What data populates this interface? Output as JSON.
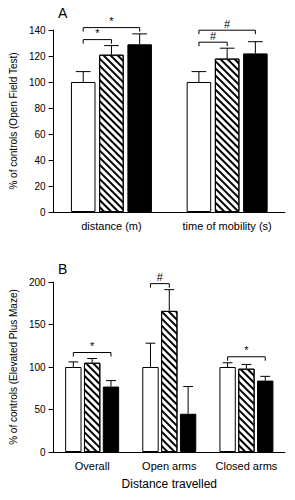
{
  "chart_data": [
    {
      "type": "bar",
      "panel_label": "A",
      "ylabel": "% of controls (Open Field Test)",
      "categories": [
        "distance (m)",
        "time of mobility (s)"
      ],
      "series": [
        {
          "color": "#ffffff",
          "values": [
            100,
            100
          ],
          "errors": [
            8,
            8
          ]
        },
        {
          "color": "#ffffff",
          "values": [
            121,
            118
          ],
          "errors": [
            7,
            8
          ]
        },
        {
          "color": "#000000",
          "values": [
            129,
            122
          ],
          "errors": [
            8,
            9
          ]
        }
      ],
      "ylim": [
        0,
        140
      ],
      "yticks": [
        0,
        20,
        40,
        60,
        80,
        100,
        120,
        140
      ],
      "grid": false,
      "significance": [
        {
          "label": "*",
          "category": 0,
          "from": 0,
          "to": 1
        },
        {
          "label": "*",
          "category": 0,
          "from": 0,
          "to": 2
        },
        {
          "label": "#",
          "category": 1,
          "from": 0,
          "to": 1
        },
        {
          "label": "#",
          "category": 1,
          "from": 0,
          "to": 2
        }
      ]
    },
    {
      "type": "bar",
      "panel_label": "B",
      "ylabel": "% of controls (Elevated Plus Maze)",
      "xlabel": "Distance travelled",
      "categories": [
        "Overall",
        "Open arms",
        "Closed arms"
      ],
      "series": [
        {
          "color": "#ffffff",
          "values": [
            100,
            100,
            100
          ],
          "errors": [
            6,
            28,
            5
          ]
        },
        {
          "color": "#ffffff",
          "values": [
            105,
            166,
            98
          ],
          "errors": [
            5,
            25,
            5
          ]
        },
        {
          "color": "#000000",
          "values": [
            77,
            45,
            84
          ],
          "errors": [
            7,
            32,
            5
          ]
        }
      ],
      "ylim": [
        0,
        200
      ],
      "yticks": [
        0,
        50,
        100,
        150,
        200
      ],
      "grid": false,
      "significance": [
        {
          "label": "*",
          "category": 0,
          "from": 0,
          "to": 2
        },
        {
          "label": "#",
          "category": 1,
          "from": 0,
          "to": 1
        },
        {
          "label": "*",
          "category": 2,
          "from": 0,
          "to": 2
        }
      ]
    }
  ]
}
